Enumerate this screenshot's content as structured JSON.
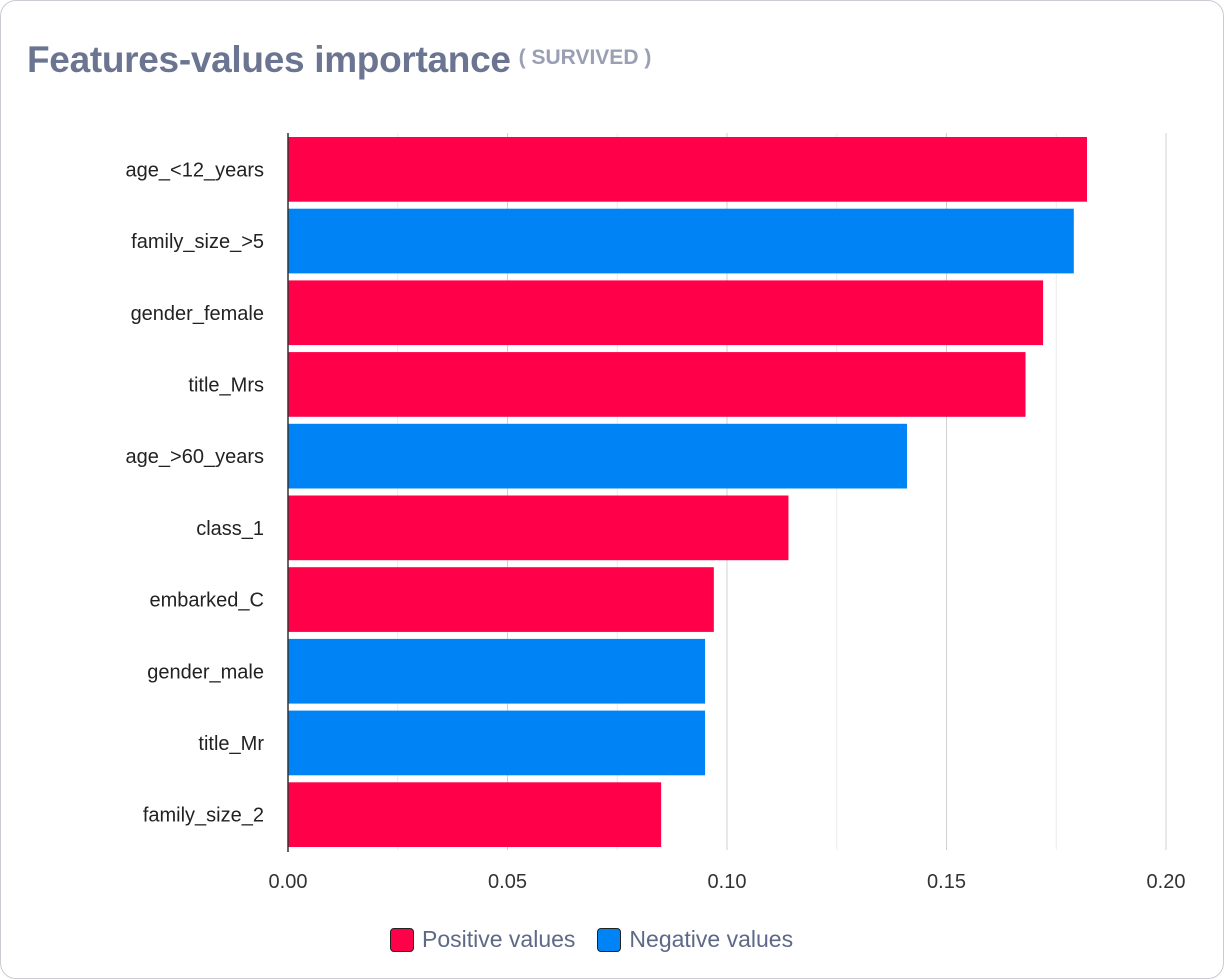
{
  "header": {
    "title": "Features-values importance",
    "subtitle": "( SURVIVED )"
  },
  "colors": {
    "positive": "#ff0049",
    "negative": "#0084f5",
    "grid": "#e5e5e5",
    "axis": "#333333"
  },
  "legend": {
    "positive_label": "Positive values",
    "negative_label": "Negative values"
  },
  "chart_data": {
    "type": "bar",
    "orientation": "horizontal",
    "categories": [
      "age_<12_years",
      "family_size_>5",
      "gender_female",
      "title_Mrs",
      "age_>60_years",
      "class_1",
      "embarked_C",
      "gender_male",
      "title_Mr",
      "family_size_2"
    ],
    "values": [
      0.182,
      0.179,
      0.172,
      0.168,
      0.141,
      0.114,
      0.097,
      0.095,
      0.095,
      0.085
    ],
    "signs": [
      "positive",
      "negative",
      "positive",
      "positive",
      "negative",
      "positive",
      "positive",
      "negative",
      "negative",
      "positive"
    ],
    "xlim": [
      0,
      0.2
    ],
    "xticks": [
      "0.00",
      "0.05",
      "0.10",
      "0.15",
      "0.20"
    ],
    "xtick_values": [
      0,
      0.05,
      0.1,
      0.15,
      0.2
    ],
    "grid": true,
    "legend_position": "bottom"
  }
}
